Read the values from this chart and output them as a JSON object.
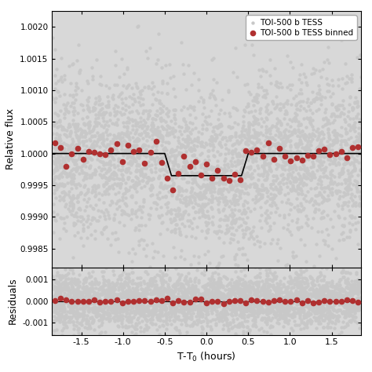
{
  "xlabel": "T-T$_0$ (hours)",
  "ylabel_upper": "Relative flux",
  "ylabel_lower": "Residuals",
  "legend_label_unbinned": "TOI-500 b TESS",
  "legend_label_binned": "TOI-500 b TESS binned",
  "unbinned_color": "#c8c8c8",
  "binned_color": "#b03030",
  "model_color": "black",
  "xlim": [
    -1.85,
    1.85
  ],
  "ylim_upper": [
    0.9982,
    1.00225
  ],
  "ylim_lower": [
    -0.00155,
    0.00155
  ],
  "yticks_upper": [
    0.9985,
    0.999,
    0.9995,
    1.0,
    1.0005,
    1.001,
    1.0015,
    1.002
  ],
  "yticks_lower": [
    -0.001,
    0.0,
    0.001
  ],
  "transit_depth": 0.00035,
  "transit_duration": 0.92,
  "ingress_duration": 0.08,
  "background_color": "#d8d8d8",
  "n_unbinned": 3500,
  "noise_std": 0.00065,
  "n_bins": 55
}
